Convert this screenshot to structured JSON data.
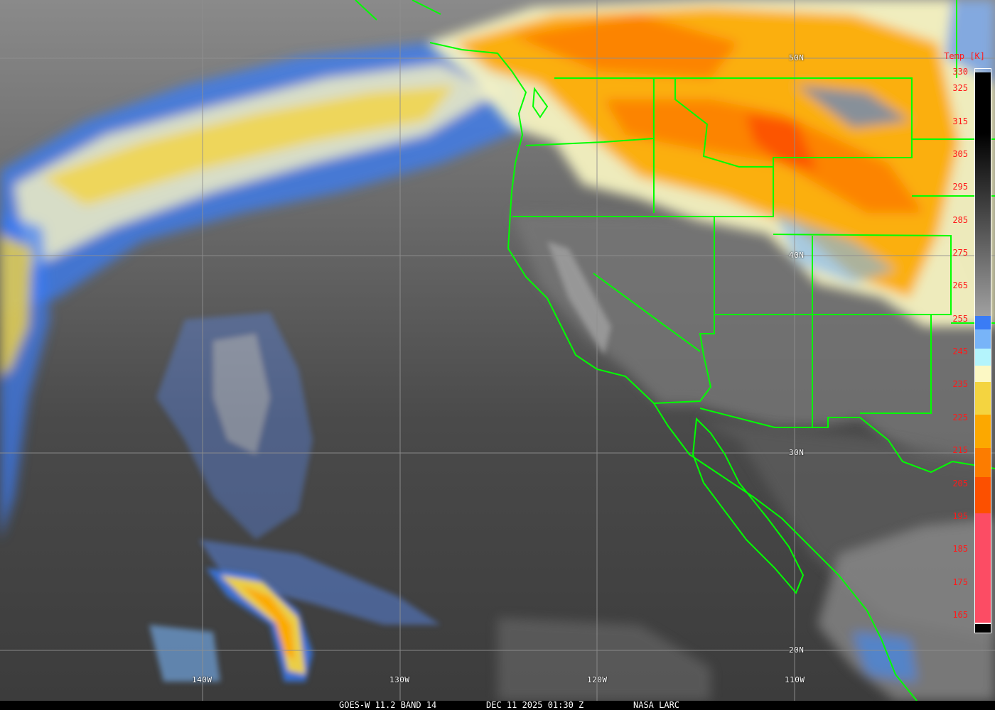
{
  "title_bar": {
    "satellite": "GOES-W 11.2 BAND 14",
    "datetime": "DEC 11 2025 01:30 Z",
    "credit": "NASA LARC"
  },
  "latitude_labels": [
    "50N",
    "40N",
    "30N",
    "20N"
  ],
  "longitude_labels": [
    "140W",
    "130W",
    "120W",
    "110W"
  ],
  "colorbar": {
    "title": "Temp [K]",
    "ticks": [
      "330",
      "325",
      "315",
      "305",
      "295",
      "285",
      "275",
      "265",
      "255",
      "245",
      "235",
      "225",
      "215",
      "205",
      "195",
      "185",
      "175",
      "165"
    ],
    "range_K": [
      165,
      330
    ],
    "segments": [
      {
        "from": 256,
        "to": 330,
        "color": "gradient #000000 to #a0a0a0"
      },
      {
        "from": 252,
        "to": 256,
        "color": "#3a7cf5"
      },
      {
        "from": 246,
        "to": 252,
        "color": "#78b4f8"
      },
      {
        "from": 241,
        "to": 246,
        "color": "#b4f4fc"
      },
      {
        "from": 236,
        "to": 241,
        "color": "#fcf8c4"
      },
      {
        "from": 226,
        "to": 236,
        "color": "#f4d440"
      },
      {
        "from": 216,
        "to": 226,
        "color": "#fca800"
      },
      {
        "from": 207,
        "to": 216,
        "color": "#fc7c00"
      },
      {
        "from": 196,
        "to": 207,
        "color": "#fc5000"
      },
      {
        "from": 160,
        "to": 196,
        "color": "#fc4c64"
      }
    ]
  },
  "colors": {
    "borders": "#00ff00",
    "grid": "#909090",
    "label_text": "#ffffff",
    "scale_text": "#ff1a1a"
  }
}
